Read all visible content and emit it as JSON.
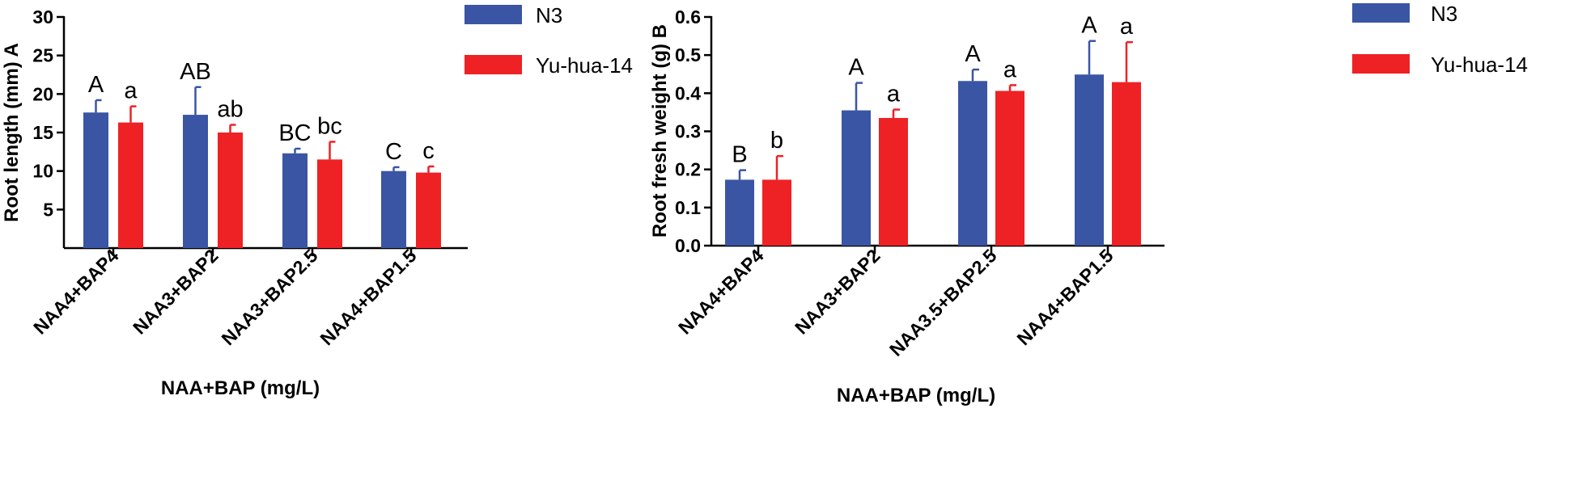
{
  "chart_data": [
    {
      "type": "bar",
      "panel": "A",
      "xlabel": "NAA+BAP (mg/L)",
      "ylabel": "Root length (mm) A",
      "ylim": [
        0,
        30
      ],
      "yticks": [
        5,
        10,
        15,
        20,
        25,
        30
      ],
      "categories": [
        "NAA4+BAP4",
        "NAA3+BAP2",
        "NAA3+BAP2.5",
        "NAA4+BAP1.5"
      ],
      "series": [
        {
          "name": "N3",
          "color": "#3a55a4",
          "values": [
            17.6,
            17.3,
            12.3,
            10.0
          ],
          "error": [
            1.6,
            3.6,
            0.6,
            0.5
          ],
          "labels": [
            "A",
            "AB",
            "BC",
            "C"
          ]
        },
        {
          "name": "Yu-hua-14",
          "color": "#ee2124",
          "values": [
            16.3,
            15.0,
            11.5,
            9.8
          ],
          "error": [
            2.1,
            1.0,
            2.3,
            0.8
          ],
          "labels": [
            "a",
            "ab",
            "bc",
            "c"
          ]
        }
      ],
      "legend_position": "top-right",
      "grid": false
    },
    {
      "type": "bar",
      "panel": "B",
      "xlabel": "NAA+BAP (mg/L)",
      "ylabel": "Root fresh weight (g) B",
      "ylim": [
        0,
        0.6
      ],
      "yticks": [
        "0.0",
        "0.1",
        "0.2",
        "0.3",
        "0.4",
        "0.5",
        "0.6"
      ],
      "categories": [
        "NAA4+BAP4",
        "NAA3+BAP2",
        "NAA3.5+BAP2.5",
        "NAA4+BAP1.5"
      ],
      "series": [
        {
          "name": "N3",
          "color": "#3a55a4",
          "values": [
            0.173,
            0.355,
            0.432,
            0.449
          ],
          "error": [
            0.025,
            0.072,
            0.03,
            0.088
          ],
          "labels": [
            "B",
            "A",
            "A",
            "A"
          ]
        },
        {
          "name": "Yu-hua-14",
          "color": "#ee2124",
          "values": [
            0.173,
            0.335,
            0.406,
            0.429
          ],
          "error": [
            0.062,
            0.022,
            0.015,
            0.105
          ],
          "labels": [
            "b",
            "a",
            "a",
            "a"
          ]
        }
      ],
      "legend_position": "top-right",
      "grid": false
    }
  ]
}
